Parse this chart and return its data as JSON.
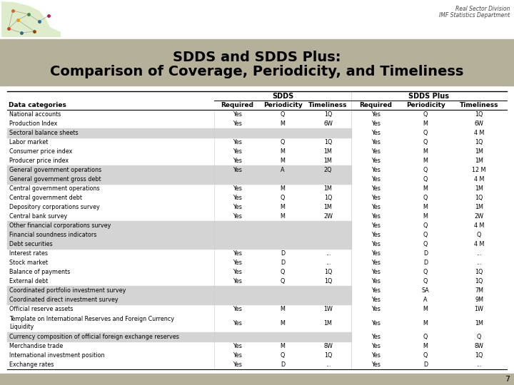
{
  "title_line1": "SDDS and SDDS Plus:",
  "title_line2": "Comparison of Coverage, Periodicity, and Timeliness",
  "watermark_line1": "Real Sector Division",
  "watermark_line2": "IMF Statistics Department",
  "title_bg_color": "#b5b09a",
  "rows": [
    {
      "cat": "National accounts",
      "shaded": false,
      "sdds_req": "Yes",
      "sdds_per": "Q",
      "sdds_tim": "1Q",
      "plus_req": "Yes",
      "plus_per": "Q",
      "plus_tim": "1Q"
    },
    {
      "cat": "Production Index",
      "shaded": false,
      "sdds_req": "Yes",
      "sdds_per": "M",
      "sdds_tim": "6W",
      "plus_req": "Yes",
      "plus_per": "M",
      "plus_tim": "6W"
    },
    {
      "cat": "Sectoral balance sheets",
      "shaded": true,
      "sdds_req": "",
      "sdds_per": "",
      "sdds_tim": "",
      "plus_req": "Yes",
      "plus_per": "Q",
      "plus_tim": "4 M"
    },
    {
      "cat": "Labor market",
      "shaded": false,
      "sdds_req": "Yes",
      "sdds_per": "Q",
      "sdds_tim": "1Q",
      "plus_req": "Yes",
      "plus_per": "Q",
      "plus_tim": "1Q"
    },
    {
      "cat": "Consumer price index",
      "shaded": false,
      "sdds_req": "Yes",
      "sdds_per": "M",
      "sdds_tim": "1M",
      "plus_req": "Yes",
      "plus_per": "M",
      "plus_tim": "1M"
    },
    {
      "cat": "Producer price index",
      "shaded": false,
      "sdds_req": "Yes",
      "sdds_per": "M",
      "sdds_tim": "1M",
      "plus_req": "Yes",
      "plus_per": "M",
      "plus_tim": "1M"
    },
    {
      "cat": "General government operations",
      "shaded": true,
      "sdds_req": "Yes",
      "sdds_per": "A",
      "sdds_tim": "2Q",
      "plus_req": "Yes",
      "plus_per": "Q",
      "plus_tim": "12 M"
    },
    {
      "cat": "General government gross debt",
      "shaded": true,
      "sdds_req": "",
      "sdds_per": "",
      "sdds_tim": "",
      "plus_req": "Yes",
      "plus_per": "Q",
      "plus_tim": "4 M"
    },
    {
      "cat": "Central government operations",
      "shaded": false,
      "sdds_req": "Yes",
      "sdds_per": "M",
      "sdds_tim": "1M",
      "plus_req": "Yes",
      "plus_per": "M",
      "plus_tim": "1M"
    },
    {
      "cat": "Central government debt",
      "shaded": false,
      "sdds_req": "Yes",
      "sdds_per": "Q",
      "sdds_tim": "1Q",
      "plus_req": "Yes",
      "plus_per": "Q",
      "plus_tim": "1Q"
    },
    {
      "cat": "Depository corporations survey",
      "shaded": false,
      "sdds_req": "Yes",
      "sdds_per": "M",
      "sdds_tim": "1M",
      "plus_req": "Yes",
      "plus_per": "M",
      "plus_tim": "1M"
    },
    {
      "cat": "Central bank survey",
      "shaded": false,
      "sdds_req": "Yes",
      "sdds_per": "M",
      "sdds_tim": "2W",
      "plus_req": "Yes",
      "plus_per": "M",
      "plus_tim": "2W"
    },
    {
      "cat": "Other financial corporations survey",
      "shaded": true,
      "sdds_req": "",
      "sdds_per": "",
      "sdds_tim": "",
      "plus_req": "Yes",
      "plus_per": "Q",
      "plus_tim": "4 M"
    },
    {
      "cat": "Financial soundness indicators",
      "shaded": true,
      "sdds_req": "",
      "sdds_per": "",
      "sdds_tim": "",
      "plus_req": "Yes",
      "plus_per": "Q",
      "plus_tim": "Q"
    },
    {
      "cat": "Debt securities",
      "shaded": true,
      "sdds_req": "",
      "sdds_per": "",
      "sdds_tim": "",
      "plus_req": "Yes",
      "plus_per": "Q",
      "plus_tim": "4 M"
    },
    {
      "cat": "Interest rates",
      "shaded": false,
      "sdds_req": "Yes",
      "sdds_per": "D",
      "sdds_tim": "...",
      "plus_req": "Yes",
      "plus_per": "D",
      "plus_tim": "..."
    },
    {
      "cat": "Stock market",
      "shaded": false,
      "sdds_req": "Yes",
      "sdds_per": "D",
      "sdds_tim": "...",
      "plus_req": "Yes",
      "plus_per": "D",
      "plus_tim": "..."
    },
    {
      "cat": "Balance of payments",
      "shaded": false,
      "sdds_req": "Yes",
      "sdds_per": "Q",
      "sdds_tim": "1Q",
      "plus_req": "Yes",
      "plus_per": "Q",
      "plus_tim": "1Q"
    },
    {
      "cat": "External debt",
      "shaded": false,
      "sdds_req": "Yes",
      "sdds_per": "Q",
      "sdds_tim": "1Q",
      "plus_req": "Yes",
      "plus_per": "Q",
      "plus_tim": "1Q"
    },
    {
      "cat": "Coordinated portfolio investment survey",
      "shaded": true,
      "sdds_req": "",
      "sdds_per": "",
      "sdds_tim": "",
      "plus_req": "Yes",
      "plus_per": "SA",
      "plus_tim": "7M"
    },
    {
      "cat": "Coordinated direct investment survey",
      "shaded": true,
      "sdds_req": "",
      "sdds_per": "",
      "sdds_tim": "",
      "plus_req": "Yes",
      "plus_per": "A",
      "plus_tim": "9M"
    },
    {
      "cat": "Official reserve assets",
      "shaded": false,
      "sdds_req": "Yes",
      "sdds_per": "M",
      "sdds_tim": "1W",
      "plus_req": "Yes",
      "plus_per": "M",
      "plus_tim": "1W"
    },
    {
      "cat": "Template on International Reserves and Foreign Currency\nLiquidity",
      "shaded": false,
      "sdds_req": "Yes",
      "sdds_per": "M",
      "sdds_tim": "1M",
      "plus_req": "Yes",
      "plus_per": "M",
      "plus_tim": "1M"
    },
    {
      "cat": "Currency composition of official foreign exchange reserves",
      "shaded": true,
      "sdds_req": "",
      "sdds_per": "",
      "sdds_tim": "",
      "plus_req": "Yes",
      "plus_per": "Q",
      "plus_tim": "Q"
    },
    {
      "cat": "Merchandise trade",
      "shaded": false,
      "sdds_req": "Yes",
      "sdds_per": "M",
      "sdds_tim": "8W",
      "plus_req": "Yes",
      "plus_per": "M",
      "plus_tim": "8W"
    },
    {
      "cat": "International investment position",
      "shaded": false,
      "sdds_req": "Yes",
      "sdds_per": "Q",
      "sdds_tim": "1Q",
      "plus_req": "Yes",
      "plus_per": "Q",
      "plus_tim": "1Q"
    },
    {
      "cat": "Exchange rates",
      "shaded": false,
      "sdds_req": "Yes",
      "sdds_per": "D",
      "sdds_tim": "...",
      "plus_req": "Yes",
      "plus_per": "D",
      "plus_tim": "..."
    }
  ],
  "shaded_color": "#d4d4d4",
  "bottom_bar_color": "#b5b09a",
  "page_number": "7"
}
